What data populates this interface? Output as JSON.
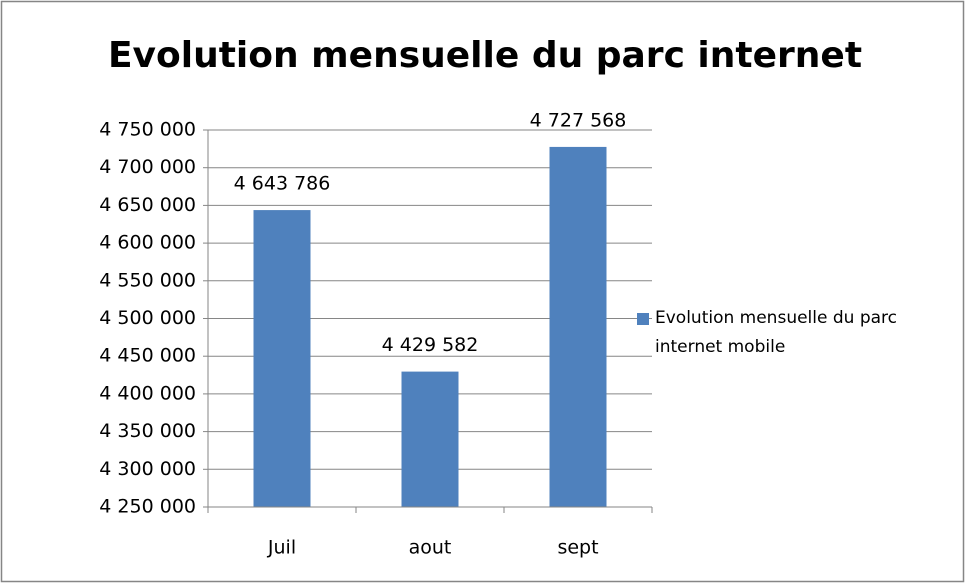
{
  "chart_data": {
    "type": "bar",
    "title": "Evolution mensuelle du parc internet",
    "categories": [
      "Juil",
      "aout",
      "sept"
    ],
    "series": [
      {
        "name": "Evolution mensuelle  du parc internet mobile",
        "color": "#4f81bd",
        "values": [
          4643786,
          4429582,
          4727568
        ],
        "value_labels": [
          "4 643 786",
          "4 429 582",
          "4 727 568"
        ]
      }
    ],
    "ylim": [
      4250000,
      4750000
    ],
    "yticks": [
      {
        "value": 4250000,
        "label": "4 250 000"
      },
      {
        "value": 4300000,
        "label": "4 300 000"
      },
      {
        "value": 4350000,
        "label": "4 350 000"
      },
      {
        "value": 4400000,
        "label": "4 400 000"
      },
      {
        "value": 4450000,
        "label": "4 450 000"
      },
      {
        "value": 4500000,
        "label": "4 500 000"
      },
      {
        "value": 4550000,
        "label": "4 550 000"
      },
      {
        "value": 4600000,
        "label": "4 600 000"
      },
      {
        "value": 4650000,
        "label": "4 650 000"
      },
      {
        "value": 4700000,
        "label": "4 700 000"
      },
      {
        "value": 4750000,
        "label": "4 750 000"
      }
    ],
    "grid": true,
    "legend": "right"
  }
}
